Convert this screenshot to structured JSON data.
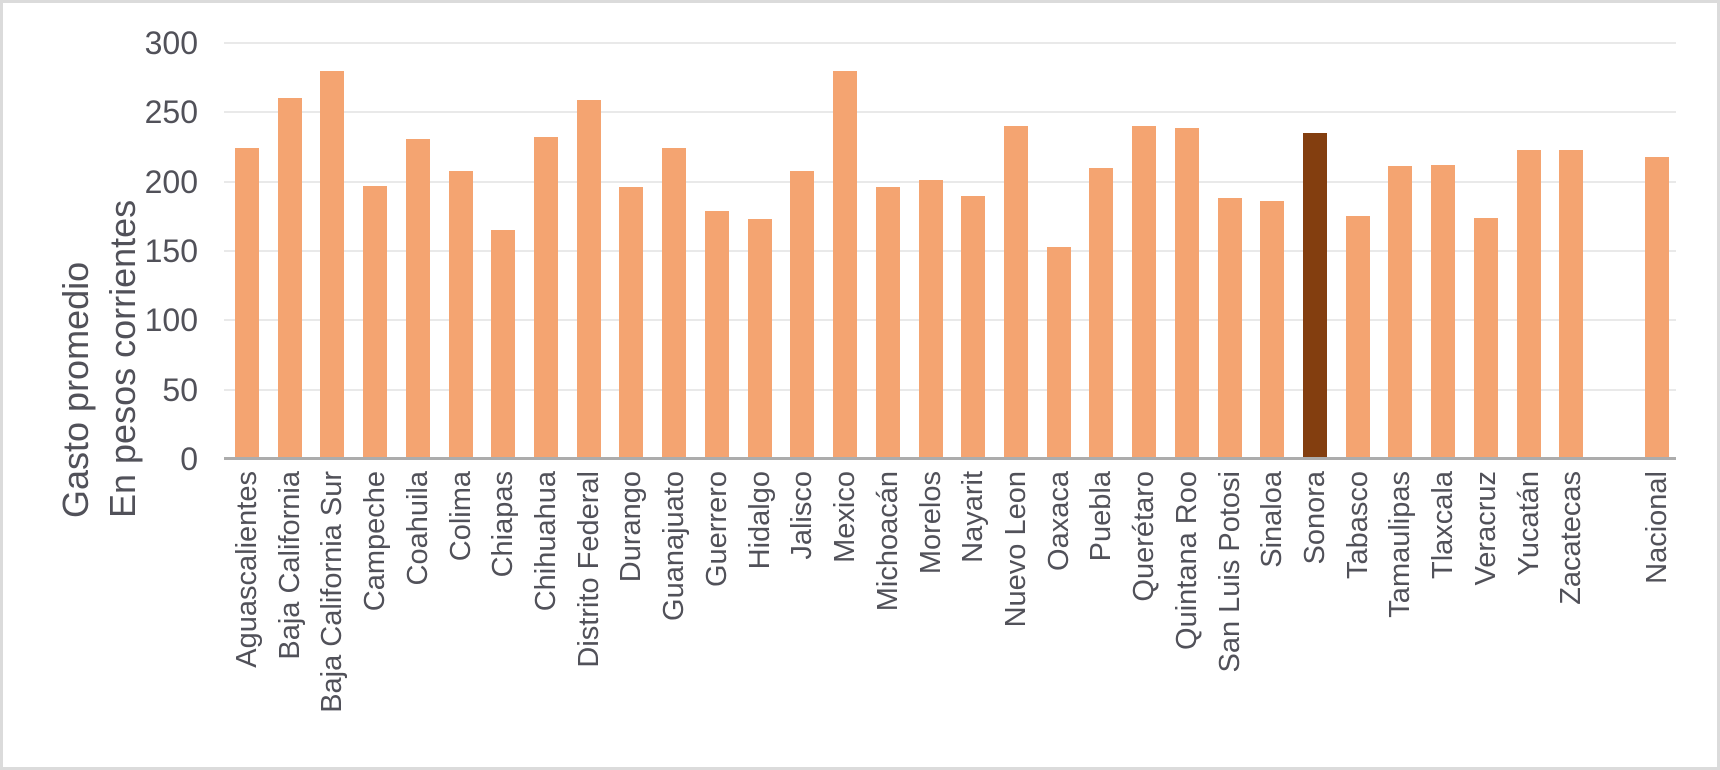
{
  "chart_data": {
    "type": "bar",
    "title": "",
    "ylabel_line1": "Gasto promedio",
    "ylabel_line2": "En pesos corrientes",
    "xlabel": "",
    "ylim": [
      0,
      300
    ],
    "yticks": [
      0,
      50,
      100,
      150,
      200,
      250,
      300
    ],
    "grid": "horizontal",
    "legend": "none",
    "categories": [
      "Aguascalientes",
      "Baja California",
      "Baja California Sur",
      "Campeche",
      "Coahuila",
      "Colima",
      "Chiapas",
      "Chihuahua",
      "Distrito Federal",
      "Durango",
      "Guanajuato",
      "Guerrero",
      "Hidalgo",
      "Jalisco",
      "Mexico",
      "Michoacán",
      "Morelos",
      "Nayarit",
      "Nuevo Leon",
      "Oaxaca",
      "Puebla",
      "Querétaro",
      "Quintana Roo",
      "San Luis Potosi",
      "Sinaloa",
      "Sonora",
      "Tabasco",
      "Tamaulipas",
      "Tlaxcala",
      "Veracruz",
      "Yucatán",
      "Zacatecas",
      "Nacional"
    ],
    "values": [
      224,
      260,
      280,
      197,
      231,
      208,
      165,
      232,
      259,
      196,
      224,
      179,
      173,
      208,
      280,
      196,
      201,
      190,
      240,
      153,
      210,
      240,
      239,
      188,
      186,
      235,
      175,
      211,
      212,
      174,
      223,
      223,
      218
    ],
    "highlight_category": "Sonora",
    "gap_before": [
      "Nacional"
    ],
    "colors": {
      "bar": "#F4A471",
      "highlight_bar": "#833E0F",
      "gridline": "#E9E9E9",
      "axis_line": "#ACACAC",
      "text": "#515159",
      "frame_border": "#DBDBDB"
    }
  }
}
